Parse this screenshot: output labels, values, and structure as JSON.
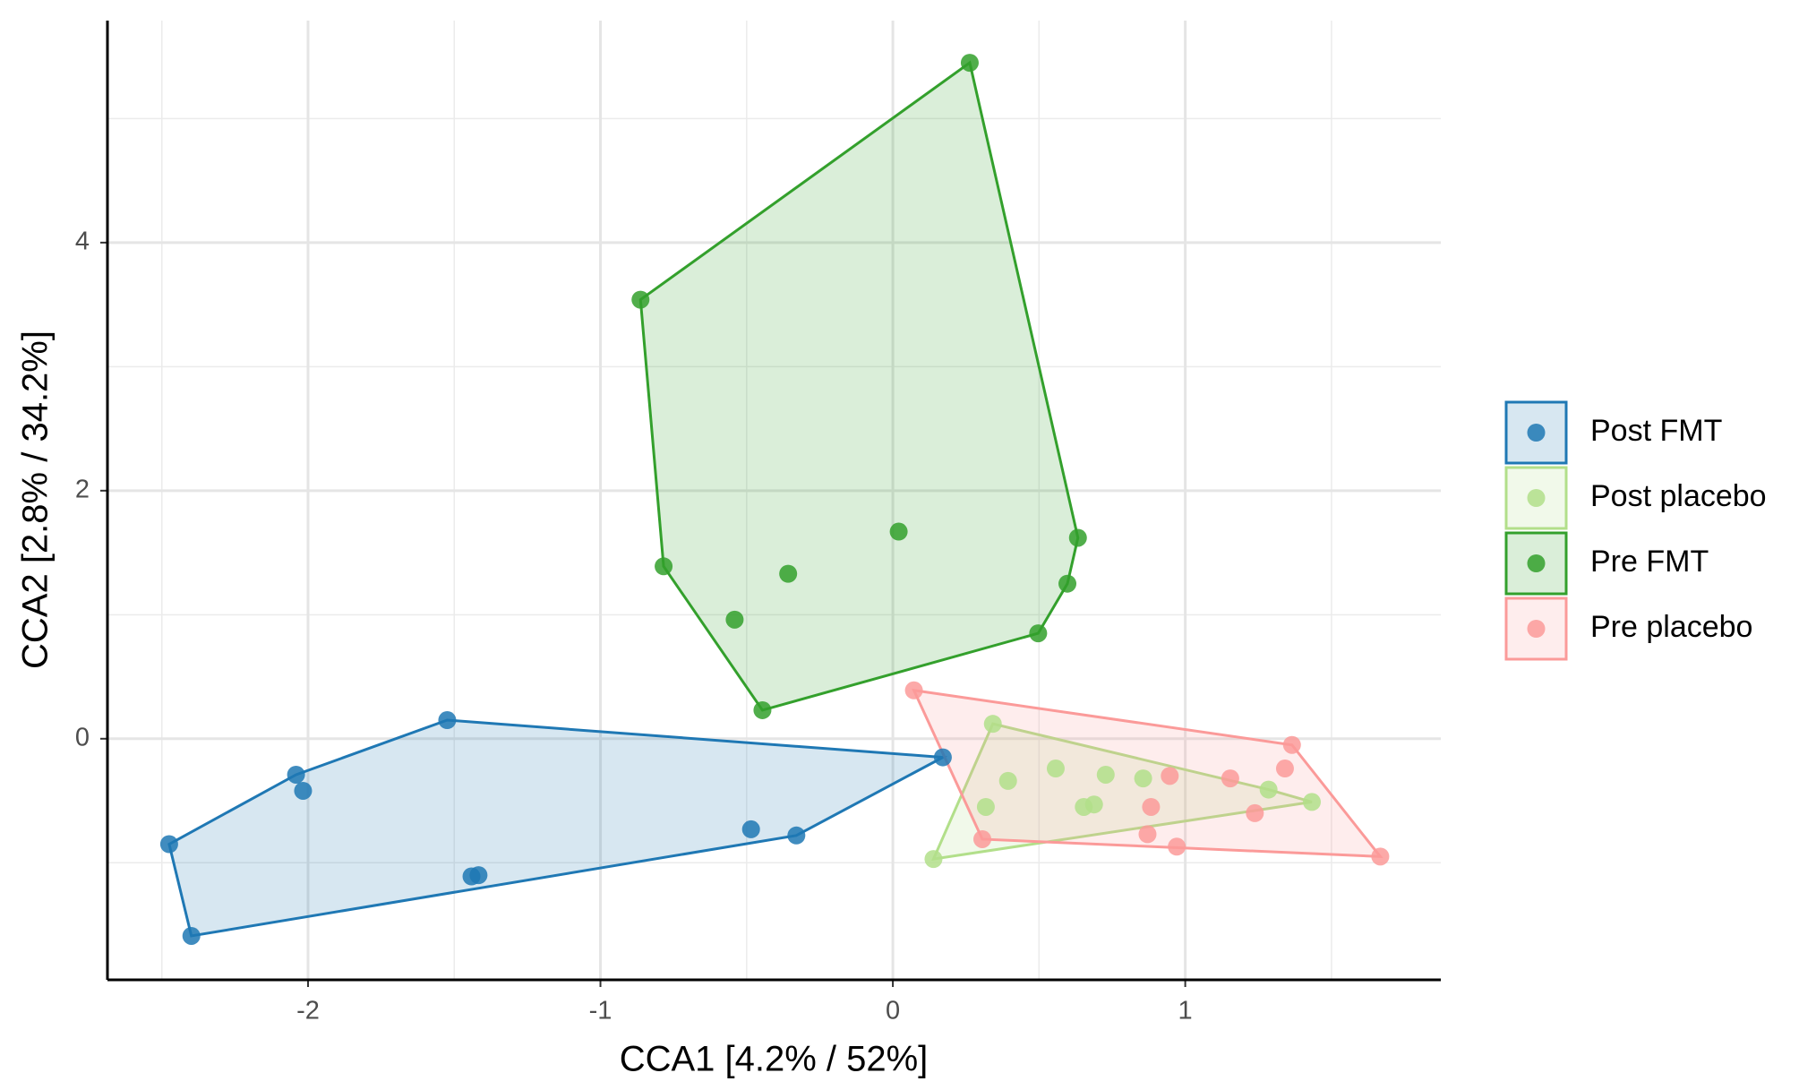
{
  "chart_data": {
    "type": "scatter",
    "xlabel": "CCA1 [4.2% / 52%]",
    "ylabel": "CCA2 [2.8% / 34.2%]",
    "xlim": [
      -2.686,
      1.874
    ],
    "ylim": [
      -1.944,
      5.79
    ],
    "xticks": [
      -2,
      -1,
      0,
      1
    ],
    "yticks": [
      0,
      2,
      4
    ],
    "grid": true,
    "minor_grid": true,
    "hull": true,
    "legend": "right",
    "series": [
      {
        "name": "Post FMT",
        "color": "#1f78b4",
        "x": [
          -1.524,
          -2.041,
          -2.017,
          -2.475,
          -2.399,
          -1.441,
          -1.417,
          -0.485,
          -0.33,
          0.171
        ],
        "values": [
          0.15,
          -0.29,
          -0.42,
          -0.85,
          -1.59,
          -1.11,
          -1.1,
          -0.73,
          -0.78,
          -0.15
        ]
      },
      {
        "name": "Post placebo",
        "color": "#b2df8a",
        "x": [
          0.342,
          0.394,
          0.318,
          0.557,
          0.653,
          0.688,
          0.728,
          0.856,
          1.285,
          1.433,
          0.139
        ],
        "values": [
          0.12,
          -0.34,
          -0.55,
          -0.24,
          -0.55,
          -0.53,
          -0.29,
          -0.32,
          -0.41,
          -0.51,
          -0.97
        ]
      },
      {
        "name": "Pre FMT",
        "color": "#33a02c",
        "x": [
          0.263,
          -0.863,
          -0.784,
          -0.358,
          0.02,
          -0.541,
          -0.446,
          0.497,
          0.597,
          0.633
        ],
        "values": [
          5.45,
          3.54,
          1.39,
          1.33,
          1.67,
          0.96,
          0.23,
          0.85,
          1.25,
          1.62
        ]
      },
      {
        "name": "Pre placebo",
        "color": "#fb9a99",
        "x": [
          0.072,
          1.365,
          1.341,
          1.154,
          0.947,
          0.883,
          1.238,
          0.871,
          0.971,
          1.667,
          0.306
        ],
        "values": [
          0.39,
          -0.05,
          -0.24,
          -0.32,
          -0.3,
          -0.55,
          -0.6,
          -0.77,
          -0.87,
          -0.95,
          -0.81
        ]
      }
    ]
  }
}
